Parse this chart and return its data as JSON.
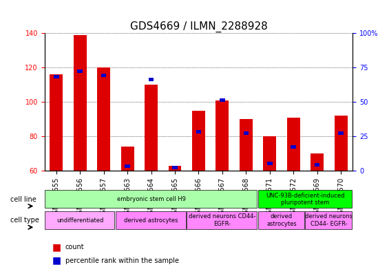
{
  "title": "GDS4669 / ILMN_2288928",
  "samples": [
    "GSM997555",
    "GSM997556",
    "GSM997557",
    "GSM997563",
    "GSM997564",
    "GSM997565",
    "GSM997566",
    "GSM997567",
    "GSM997568",
    "GSM997571",
    "GSM997572",
    "GSM997569",
    "GSM997570"
  ],
  "counts": [
    116,
    139,
    120,
    74,
    110,
    63,
    95,
    101,
    90,
    80,
    91,
    70,
    92
  ],
  "percentiles": [
    67,
    71,
    68,
    2,
    65,
    1,
    27,
    50,
    26,
    4,
    16,
    3,
    26
  ],
  "ylim_left": [
    60,
    140
  ],
  "ylim_right": [
    0,
    100
  ],
  "yticks_left": [
    60,
    80,
    100,
    120,
    140
  ],
  "yticks_right": [
    0,
    25,
    50,
    75,
    100
  ],
  "bar_bottom": 60,
  "cell_line_groups": [
    {
      "label": "embryonic stem cell H9",
      "start": 0,
      "end": 9,
      "color": "#aaffaa"
    },
    {
      "label": "UNC-93B-deficient-induced\npluripotent stem",
      "start": 9,
      "end": 13,
      "color": "#00ff00"
    }
  ],
  "cell_type_groups": [
    {
      "label": "undifferentiated",
      "start": 0,
      "end": 3,
      "color": "#ffaaff"
    },
    {
      "label": "derived astrocytes",
      "start": 3,
      "end": 6,
      "color": "#ff88ff"
    },
    {
      "label": "derived neurons CD44-\nEGFR-",
      "start": 6,
      "end": 9,
      "color": "#ff88ff"
    },
    {
      "label": "derived\nastrocytes",
      "start": 9,
      "end": 11,
      "color": "#ff88ff"
    },
    {
      "label": "derived neurons\nCD44- EGFR-",
      "start": 11,
      "end": 13,
      "color": "#ff88ff"
    }
  ],
  "bar_color_red": "#dd0000",
  "bar_color_blue": "#0000cc",
  "grid_color": "black",
  "bg_color": "#f0f0f0",
  "title_fontsize": 11,
  "tick_fontsize": 7,
  "label_fontsize": 8
}
